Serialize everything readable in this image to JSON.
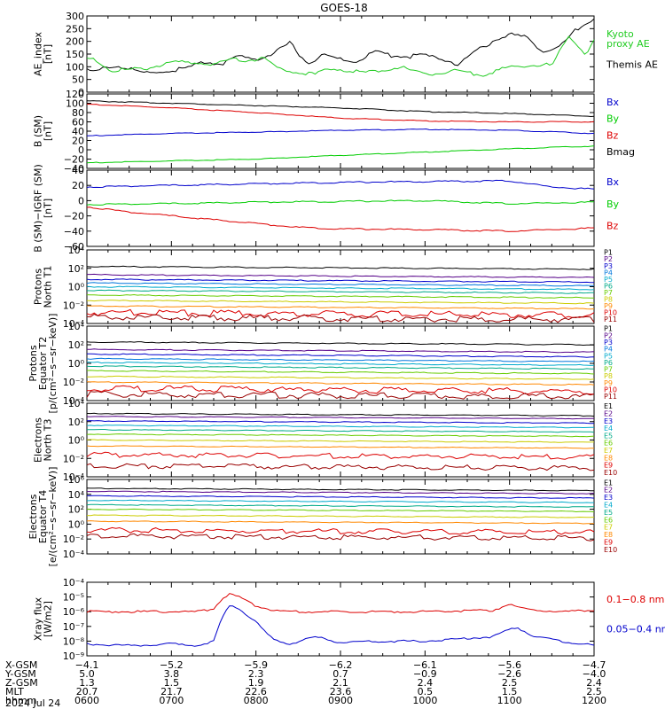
{
  "title": "GOES-18",
  "date_label": "2024 Jul 24",
  "colors": {
    "black": "#000000",
    "red": "#dd0000",
    "green": "#00cc00",
    "blue": "#0000cc",
    "legend_green": "#22cc22"
  },
  "chart_data": [
    {
      "type": "line",
      "id": "ae",
      "ylabel": [
        "AE_index",
        "[nT]"
      ],
      "ylim": [
        0,
        300
      ],
      "ticks": [
        "300",
        "250",
        "200",
        "150",
        "100",
        "50",
        "0"
      ],
      "legend": [
        {
          "name": "Kyoto\nproxy AE",
          "color": "#22cc22"
        },
        {
          "name": "Themis AE",
          "color": "#000000"
        }
      ],
      "series": [
        {
          "name": "Themis AE",
          "color": "#000000",
          "x": [
            0,
            0.1,
            0.2,
            0.35,
            0.5,
            0.7,
            0.85,
            1.0,
            1.2,
            1.4,
            1.6,
            1.8,
            2.0,
            2.2,
            2.4,
            2.6,
            2.8,
            3.0,
            3.2,
            3.4,
            3.6,
            3.8,
            4.0,
            4.2,
            4.4,
            4.6,
            4.8,
            5.0,
            5.2,
            5.4,
            5.6,
            5.8,
            6.0
          ],
          "y": [
            85,
            80,
            95,
            105,
            90,
            75,
            80,
            85,
            95,
            120,
            110,
            140,
            130,
            150,
            195,
            115,
            145,
            130,
            120,
            160,
            145,
            140,
            145,
            130,
            110,
            160,
            200,
            230,
            215,
            160,
            180,
            250,
            290
          ]
        },
        {
          "name": "Kyoto proxy AE",
          "color": "#22cc22",
          "x": [
            0,
            0.1,
            0.3,
            0.5,
            0.7,
            0.9,
            1.1,
            1.3,
            1.5,
            1.7,
            1.9,
            2.1,
            2.3,
            2.5,
            2.7,
            2.9,
            3.1,
            3.3,
            3.5,
            3.7,
            3.9,
            4.1,
            4.3,
            4.5,
            4.7,
            4.9,
            5.1,
            5.3,
            5.5,
            5.7,
            5.9,
            6.0
          ],
          "y": [
            130,
            125,
            85,
            90,
            95,
            110,
            120,
            115,
            110,
            130,
            125,
            135,
            85,
            80,
            70,
            95,
            85,
            75,
            90,
            100,
            80,
            70,
            85,
            75,
            70,
            90,
            100,
            110,
            105,
            220,
            150,
            200
          ]
        }
      ]
    },
    {
      "type": "line",
      "id": "bsm",
      "ylabel": [
        "B (SM)",
        "[nT]"
      ],
      "ylim": [
        -40,
        120
      ],
      "ticks": [
        "120",
        "100",
        "80",
        "60",
        "40",
        "20",
        "0",
        "−20",
        "−40"
      ],
      "legend": [
        {
          "name": "Bx",
          "color": "#0000cc"
        },
        {
          "name": "By",
          "color": "#00cc00"
        },
        {
          "name": "Bz",
          "color": "#dd0000"
        },
        {
          "name": "Bmag",
          "color": "#000000"
        }
      ],
      "series": [
        {
          "name": "Bmag",
          "color": "#000000",
          "x": [
            0,
            1,
            2,
            3,
            4,
            5,
            6
          ],
          "y": [
            105,
            100,
            95,
            90,
            82,
            78,
            72
          ]
        },
        {
          "name": "Bz",
          "color": "#dd0000",
          "x": [
            0,
            1,
            2,
            3,
            4,
            5,
            6
          ],
          "y": [
            98,
            90,
            80,
            68,
            62,
            60,
            60
          ]
        },
        {
          "name": "Bx",
          "color": "#0000cc",
          "x": [
            0,
            1,
            2,
            3,
            4,
            5,
            6
          ],
          "y": [
            30,
            35,
            38,
            42,
            44,
            42,
            35
          ]
        },
        {
          "name": "By",
          "color": "#00cc00",
          "x": [
            0,
            1,
            2,
            3,
            4,
            5,
            6
          ],
          "y": [
            -28,
            -24,
            -20,
            -12,
            -5,
            2,
            8
          ]
        }
      ]
    },
    {
      "type": "line",
      "id": "bdiff",
      "ylabel": [
        "B (SM)−IGRF (SM)",
        "[nT]"
      ],
      "ylim": [
        -60,
        40
      ],
      "ticks": [
        "40",
        "20",
        "0",
        "−20",
        "−40",
        "−60"
      ],
      "legend": [
        {
          "name": "Bx",
          "color": "#0000cc"
        },
        {
          "name": "By",
          "color": "#00cc00"
        },
        {
          "name": "Bz",
          "color": "#dd0000"
        }
      ],
      "series": [
        {
          "name": "Bx",
          "color": "#0000cc",
          "x": [
            0,
            1,
            2,
            3,
            4,
            5,
            5.5,
            6
          ],
          "y": [
            18,
            20,
            22,
            24,
            25,
            26,
            18,
            15
          ]
        },
        {
          "name": "By",
          "color": "#00cc00",
          "x": [
            0,
            1,
            2,
            3,
            4,
            5,
            6
          ],
          "y": [
            -5,
            -4,
            -2,
            -1,
            0,
            -4,
            -2
          ]
        },
        {
          "name": "Bz",
          "color": "#dd0000",
          "x": [
            0,
            0.5,
            1,
            1.5,
            2,
            2.5,
            3,
            4,
            5,
            6
          ],
          "y": [
            -8,
            -15,
            -20,
            -25,
            -30,
            -35,
            -37,
            -38,
            -40,
            -36
          ]
        }
      ]
    },
    {
      "type": "line",
      "id": "prot_n",
      "ylabel": [
        "Protons",
        "North T1"
      ],
      "log": true,
      "ylim_exp": [
        -4,
        4
      ],
      "ticks": [
        "10⁴",
        "10²",
        "10⁰",
        "10⁻²",
        "10⁻⁴"
      ],
      "levels": [
        2.2,
        1.3,
        0.8,
        0.4,
        0.0,
        -0.4,
        -0.9,
        -1.5,
        -2.1,
        -2.8,
        -3.3
      ],
      "legend": [
        {
          "name": "P1",
          "color": "#000000"
        },
        {
          "name": "P2",
          "color": "#550088"
        },
        {
          "name": "P3",
          "color": "#0000cc"
        },
        {
          "name": "P4",
          "color": "#0077dd"
        },
        {
          "name": "P5",
          "color": "#00aacc"
        },
        {
          "name": "P6",
          "color": "#00aa88"
        },
        {
          "name": "P7",
          "color": "#66cc00"
        },
        {
          "name": "P8",
          "color": "#cccc00"
        },
        {
          "name": "P9",
          "color": "#ff8800"
        },
        {
          "name": "P10",
          "color": "#dd0000"
        },
        {
          "name": "P11",
          "color": "#990000"
        }
      ]
    },
    {
      "type": "line",
      "id": "prot_e",
      "ylabel": [
        "Protons",
        "Equator T2",
        "[p/(cm²−s−sr−keV)]"
      ],
      "log": true,
      "ylim_exp": [
        -4,
        4
      ],
      "ticks": [
        "10⁴",
        "10²",
        "10⁰",
        "10⁻²",
        "10⁻⁴"
      ],
      "levels": [
        2.3,
        1.5,
        1.0,
        0.5,
        0.1,
        -0.3,
        -0.8,
        -1.4,
        -2.0,
        -2.7,
        -3.3
      ],
      "legend": [
        {
          "name": "P1",
          "color": "#000000"
        },
        {
          "name": "P2",
          "color": "#550088"
        },
        {
          "name": "P3",
          "color": "#0000cc"
        },
        {
          "name": "P4",
          "color": "#0077dd"
        },
        {
          "name": "P5",
          "color": "#00aacc"
        },
        {
          "name": "P6",
          "color": "#00aa88"
        },
        {
          "name": "P7",
          "color": "#66cc00"
        },
        {
          "name": "P8",
          "color": "#cccc00"
        },
        {
          "name": "P9",
          "color": "#ff8800"
        },
        {
          "name": "P10",
          "color": "#dd0000"
        },
        {
          "name": "P11",
          "color": "#990000"
        }
      ]
    },
    {
      "type": "line",
      "id": "elec_n",
      "ylabel": [
        "Electrons",
        "North T3"
      ],
      "log": true,
      "ylim_exp": [
        -4,
        6
      ],
      "ticks": [
        "10⁴",
        "10²",
        "10⁰",
        "10⁻²",
        "10⁻⁴"
      ],
      "levels": [
        4.6,
        4.2,
        3.6,
        3.0,
        2.4,
        1.8,
        1.0,
        0.2,
        -1.0,
        -2.5
      ],
      "legend": [
        {
          "name": "E1",
          "color": "#000000"
        },
        {
          "name": "E2",
          "color": "#550088"
        },
        {
          "name": "E3",
          "color": "#0000cc"
        },
        {
          "name": "E4",
          "color": "#00aacc"
        },
        {
          "name": "E5",
          "color": "#00aa88"
        },
        {
          "name": "E6",
          "color": "#66cc00"
        },
        {
          "name": "E7",
          "color": "#cccc00"
        },
        {
          "name": "E8",
          "color": "#ff8800"
        },
        {
          "name": "E9",
          "color": "#dd0000"
        },
        {
          "name": "E10",
          "color": "#990000"
        }
      ]
    },
    {
      "type": "line",
      "id": "elec_e",
      "ylabel": [
        "Electrons",
        "Equator T4",
        "[e/(cm²−s−sr−keV)]"
      ],
      "log": true,
      "ylim_exp": [
        -4,
        6
      ],
      "ticks": [
        "10⁶",
        "10⁴",
        "10²",
        "10⁰",
        "10⁻²",
        "10⁻⁴"
      ],
      "levels": [
        4.8,
        4.4,
        3.8,
        3.2,
        2.6,
        2.0,
        1.2,
        0.4,
        -0.8,
        -1.6
      ],
      "legend": [
        {
          "name": "E1",
          "color": "#000000"
        },
        {
          "name": "E2",
          "color": "#550088"
        },
        {
          "name": "E3",
          "color": "#0000cc"
        },
        {
          "name": "E4",
          "color": "#00aacc"
        },
        {
          "name": "E5",
          "color": "#00aa88"
        },
        {
          "name": "E6",
          "color": "#66cc00"
        },
        {
          "name": "E7",
          "color": "#cccc00"
        },
        {
          "name": "E8",
          "color": "#ff8800"
        },
        {
          "name": "E9",
          "color": "#dd0000"
        },
        {
          "name": "E10",
          "color": "#990000"
        }
      ]
    },
    {
      "type": "line",
      "id": "xray",
      "ylabel": [
        "Xray flux",
        "[W/m2]"
      ],
      "log": true,
      "ylim_exp": [
        -9,
        -4
      ],
      "ticks": [
        "10⁻⁴",
        "10⁻⁵",
        "10⁻⁶",
        "10⁻⁷",
        "10⁻⁸",
        "10⁻⁹"
      ],
      "legend": [
        {
          "name": "0.1−0.8 nm",
          "color": "#dd0000"
        },
        {
          "name": "0.05−0.4 nm",
          "color": "#0000cc"
        }
      ],
      "series": [
        {
          "name": "0.1−0.8 nm",
          "color": "#dd0000",
          "x": [
            0,
            0.5,
            1.0,
            1.3,
            1.5,
            1.6,
            1.7,
            1.8,
            2.0,
            2.2,
            2.4,
            3.0,
            4.0,
            4.8,
            5.0,
            5.1,
            5.3,
            5.6,
            6.0
          ],
          "y": [
            -6.0,
            -6.0,
            -6.0,
            -6.0,
            -5.8,
            -5.1,
            -4.8,
            -5.0,
            -5.6,
            -5.9,
            -6.0,
            -6.0,
            -6.0,
            -5.9,
            -5.5,
            -5.7,
            -5.9,
            -6.0,
            -5.9
          ]
        },
        {
          "name": "0.05−0.4 nm",
          "color": "#0000cc",
          "x": [
            0,
            0.5,
            1.0,
            1.3,
            1.5,
            1.6,
            1.7,
            1.8,
            2.0,
            2.2,
            2.4,
            2.7,
            3.0,
            3.5,
            4.0,
            4.5,
            4.8,
            5.0,
            5.1,
            5.3,
            5.6,
            6.0
          ],
          "y": [
            -8.2,
            -8.3,
            -8.2,
            -8.3,
            -8.0,
            -6.4,
            -5.5,
            -5.8,
            -6.7,
            -7.9,
            -8.2,
            -7.7,
            -8.1,
            -8.0,
            -8.0,
            -7.8,
            -7.7,
            -7.2,
            -7.1,
            -7.7,
            -8.0,
            -8.3
          ]
        }
      ]
    }
  ],
  "xaxis": {
    "rows": [
      {
        "label": "X-GSM",
        "values": [
          "−4.1",
          "−5.2",
          "−5.9",
          "−6.2",
          "−6.1",
          "−5.6",
          "−4.7"
        ]
      },
      {
        "label": "Y-GSM",
        "values": [
          "5.0",
          "3.8",
          "2.3",
          "0.7",
          "−0.9",
          "−2.6",
          "−4.0"
        ]
      },
      {
        "label": "Z-GSM",
        "values": [
          "1.3",
          "1.5",
          "1.9",
          "2.1",
          "2.4",
          "2.5",
          "2.4"
        ]
      },
      {
        "label": "MLT",
        "values": [
          "20.7",
          "21.7",
          "22.6",
          "23.6",
          "0.5",
          "1.5",
          "2.5"
        ]
      },
      {
        "label": "hhmm",
        "values": [
          "0600",
          "0700",
          "0800",
          "0900",
          "1000",
          "1100",
          "1200"
        ]
      }
    ]
  }
}
